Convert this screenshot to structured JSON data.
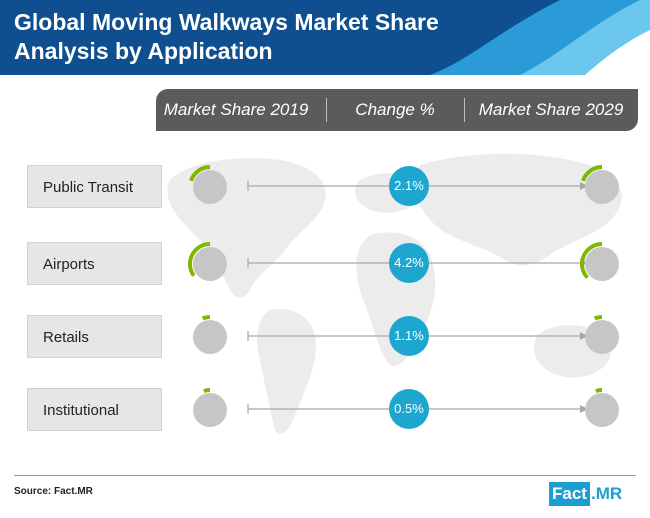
{
  "title": {
    "line1": "Global Moving Walkways Market Share",
    "line2": "Analysis by Application"
  },
  "colors": {
    "banner": "#0f4f8f",
    "accent_light": "#6cc7ee",
    "accent_mid": "#2a9bd6",
    "header_bar": "#5b5b5b",
    "ring": "#7fb800",
    "donut_core": "#c6c6c6",
    "bubble": "#1ea7ce"
  },
  "columns": {
    "share_2019": "Market Share 2019",
    "change": "Change %",
    "share_2029": "Market Share 2029"
  },
  "chart_data": {
    "type": "table",
    "columns": [
      "Market Share 2019",
      "Change %",
      "Market Share 2029"
    ],
    "rows": [
      {
        "label": "Public Transit",
        "share_2019": 0.2,
        "change": "2.1%",
        "share_2029": 0.2
      },
      {
        "label": "Airports",
        "share_2019": 0.35,
        "change": "4.2%",
        "share_2029": 0.37
      },
      {
        "label": "Retails",
        "share_2019": 0.06,
        "change": "1.1%",
        "share_2029": 0.06
      },
      {
        "label": "Institutional",
        "share_2019": 0.05,
        "change": "0.5%",
        "share_2029": 0.05
      }
    ]
  },
  "footer": {
    "source": "Source: Fact.MR",
    "logo_part1": "Fact",
    "logo_dot": ".",
    "logo_part2": "MR"
  }
}
